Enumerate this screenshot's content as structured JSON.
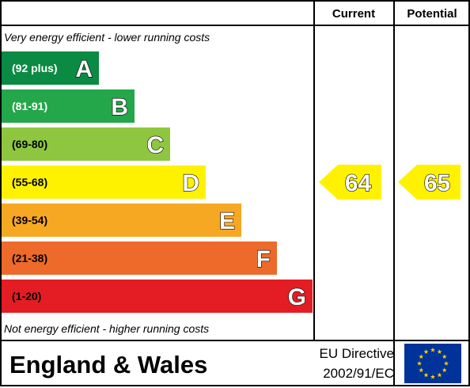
{
  "chart_data": {
    "type": "bar",
    "headers": {
      "current": "Current",
      "potential": "Potential"
    },
    "top_note": "Very energy efficient - lower running costs",
    "bottom_note": "Not energy efficient - higher running costs",
    "bands": [
      {
        "letter": "A",
        "range": "(92 plus)",
        "color": "#0b8a43",
        "range_text_color": "#ffffff"
      },
      {
        "letter": "B",
        "range": "(81-91)",
        "color": "#24a64a",
        "range_text_color": "#ffffff"
      },
      {
        "letter": "C",
        "range": "(69-80)",
        "color": "#8ec63f",
        "range_text_color": "#000000"
      },
      {
        "letter": "D",
        "range": "(55-68)",
        "color": "#fff200",
        "range_text_color": "#000000"
      },
      {
        "letter": "E",
        "range": "(39-54)",
        "color": "#f7a823",
        "range_text_color": "#000000"
      },
      {
        "letter": "F",
        "range": "(21-38)",
        "color": "#ee6a2a",
        "range_text_color": "#000000"
      },
      {
        "letter": "G",
        "range": "(1-20)",
        "color": "#e31d23",
        "range_text_color": "#000000"
      }
    ],
    "current": {
      "value": 64,
      "band": "D",
      "color": "#fff200"
    },
    "potential": {
      "value": 65,
      "band": "D",
      "color": "#fff200"
    }
  },
  "footer": {
    "region": "England & Wales",
    "directive_line1": "EU Directive",
    "directive_line2": "2002/91/EC",
    "flag_color": "#003399",
    "star_color": "#ffcc00"
  }
}
